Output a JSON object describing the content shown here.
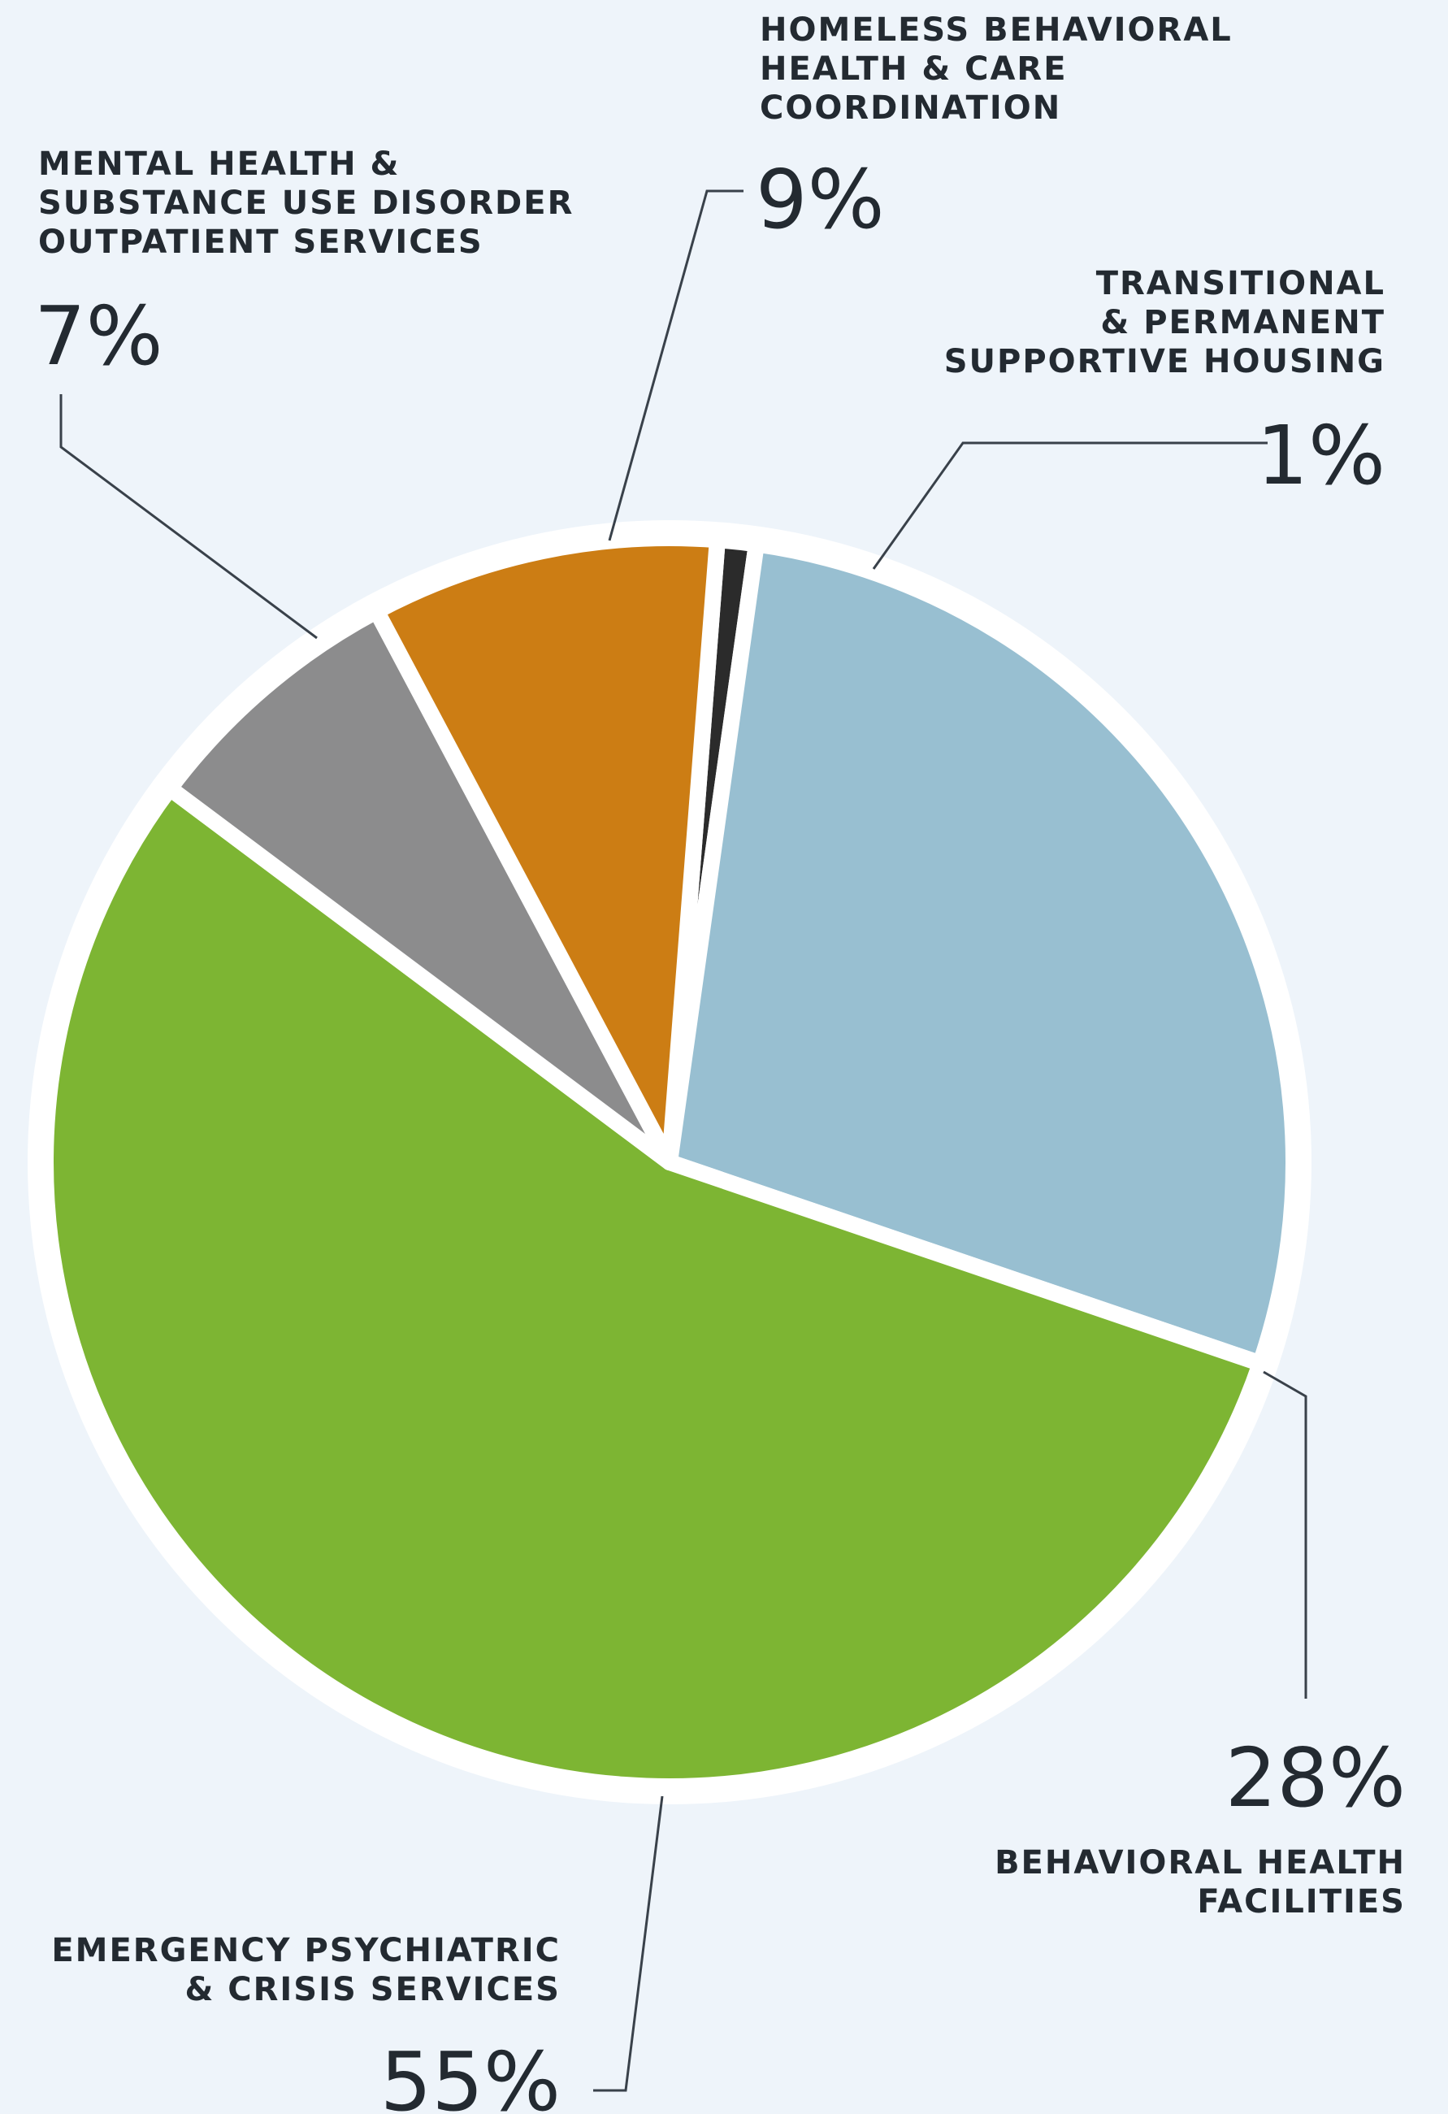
{
  "chart_data": {
    "type": "pie",
    "slices": [
      {
        "label_lines": [
          "TRANSITIONAL",
          "& PERMANENT",
          "SUPPORTIVE HOUSING"
        ],
        "value": 1,
        "value_label": "1%",
        "color": "#2b2b2b"
      },
      {
        "label_lines": [
          "BEHAVIORAL HEALTH",
          "FACILITIES"
        ],
        "value": 28,
        "value_label": "28%",
        "color": "#98bfd1"
      },
      {
        "label_lines": [
          "EMERGENCY PSYCHIATRIC",
          "& CRISIS SERVICES"
        ],
        "value": 55,
        "value_label": "55%",
        "color": "#7db533"
      },
      {
        "label_lines": [
          "MENTAL HEALTH &",
          "SUBSTANCE USE DISORDER",
          "OUTPATIENT SERVICES"
        ],
        "value": 7,
        "value_label": "7%",
        "color": "#8c8c8d"
      },
      {
        "label_lines": [
          "HOMELESS BEHAVIORAL",
          "HEALTH & CARE",
          "COORDINATION"
        ],
        "value": 9,
        "value_label": "9%",
        "color": "#cc7d14"
      }
    ]
  },
  "colors": {
    "background": "#eef4fa",
    "separator": "#ffffff",
    "text": "#232a31",
    "leader": "#39414a"
  }
}
